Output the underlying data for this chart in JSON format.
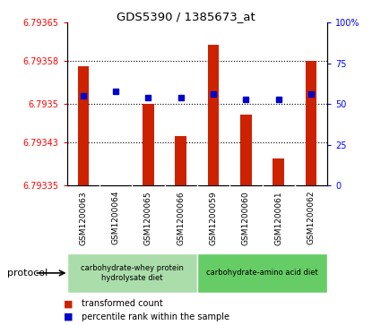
{
  "title": "GDS5390 / 1385673_at",
  "samples": [
    "GSM1200063",
    "GSM1200064",
    "GSM1200065",
    "GSM1200066",
    "GSM1200059",
    "GSM1200060",
    "GSM1200061",
    "GSM1200062"
  ],
  "red_values": [
    6.79357,
    6.79335,
    6.7935,
    6.79344,
    6.79361,
    6.79348,
    6.7934,
    6.79358
  ],
  "blue_values": [
    55,
    58,
    54,
    54,
    56,
    53,
    53,
    56
  ],
  "y_min": 6.79335,
  "y_max": 6.79365,
  "y_ticks": [
    6.79335,
    6.79343,
    6.7935,
    6.79358,
    6.79365
  ],
  "y_tick_labels": [
    "6.79335",
    "6.79343",
    "6.7935",
    "6.79358",
    "6.79365"
  ],
  "y2_ticks": [
    0,
    25,
    50,
    75,
    100
  ],
  "y2_tick_labels": [
    "0",
    "25",
    "50",
    "75",
    "100%"
  ],
  "protocols": [
    {
      "label": "carbohydrate-whey protein\nhydrolysate diet",
      "start": 0,
      "end": 4,
      "color": "#AADDAA"
    },
    {
      "label": "carbohydrate-amino acid diet",
      "start": 4,
      "end": 8,
      "color": "#66CC66"
    }
  ],
  "protocol_label": "protocol",
  "bar_color": "#CC2200",
  "dot_color": "#0000CC",
  "bg_xtick": "#CCCCCC",
  "legend_red": "transformed count",
  "legend_blue": "percentile rank within the sample"
}
